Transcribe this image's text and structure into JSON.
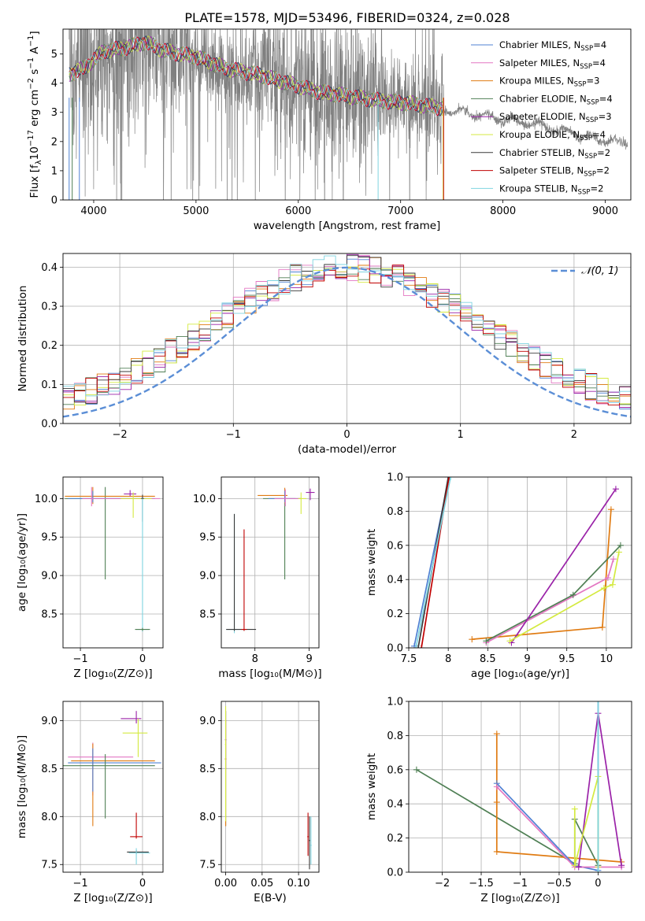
{
  "figure": {
    "title": "PLATE=1578, MJD=53496, FIBERID=0324, z=0.028"
  },
  "models": [
    {
      "name": "Chabrier MILES",
      "nssp": "4",
      "color": "#4f81d3"
    },
    {
      "name": "Salpeter MILES",
      "nssp": "4",
      "color": "#e377c2"
    },
    {
      "name": "Kroupa MILES",
      "nssp": "3",
      "color": "#e07b12"
    },
    {
      "name": "Chabrier ELODIE",
      "nssp": "4",
      "color": "#4f7f54"
    },
    {
      "name": "Salpeter ELODIE",
      "nssp": "3",
      "color": "#9a22a8"
    },
    {
      "name": "Kroupa ELODIE",
      "nssp": "4",
      "color": "#d4ea40"
    },
    {
      "name": "Chabrier STELIB",
      "nssp": "2",
      "color": "#3a3a3a"
    },
    {
      "name": "Salpeter STELIB",
      "nssp": "2",
      "color": "#c00000"
    },
    {
      "name": "Kroupa STELIB",
      "nssp": "2",
      "color": "#7fd4e0"
    }
  ],
  "chart_data": [
    {
      "id": "spectrum",
      "type": "line",
      "xlabel": "wavelength [Angstrom, rest frame]",
      "ylabel_parts": [
        "Flux [f",
        "λ",
        "10",
        "−17",
        " erg cm",
        "−2",
        " s",
        "−1",
        " A",
        "−1",
        "]"
      ],
      "xlim": [
        3700,
        9250
      ],
      "ylim": [
        0,
        5.85
      ],
      "xticks": [
        4000,
        5000,
        6000,
        7000,
        8000,
        9000
      ],
      "yticks": [
        0,
        1,
        2,
        3,
        4,
        5
      ],
      "data_color": "#808080",
      "spectrum_continuum": [
        [
          3750,
          4.3
        ],
        [
          3900,
          4.5
        ],
        [
          4100,
          5.1
        ],
        [
          4300,
          5.2
        ],
        [
          4500,
          5.4
        ],
        [
          4700,
          5.1
        ],
        [
          5000,
          4.9
        ],
        [
          5300,
          4.5
        ],
        [
          5600,
          4.3
        ],
        [
          5900,
          4.0
        ],
        [
          6200,
          3.7
        ],
        [
          6500,
          3.55
        ],
        [
          6800,
          3.4
        ],
        [
          7100,
          3.3
        ],
        [
          7400,
          3.15
        ],
        [
          7700,
          2.95
        ],
        [
          8000,
          2.75
        ],
        [
          8300,
          2.6
        ],
        [
          8600,
          2.35
        ],
        [
          8900,
          2.1
        ],
        [
          9150,
          1.95
        ]
      ],
      "model_fit_range": [
        3760,
        7420
      ]
    },
    {
      "id": "residuals",
      "type": "histogram",
      "xlabel": "(data-model)/error",
      "ylabel": "Normed distribution",
      "xlim": [
        -2.5,
        2.5
      ],
      "ylim": [
        0,
        0.435
      ],
      "xticks": [
        -2,
        -1,
        0,
        1,
        2
      ],
      "yticks": [
        0.0,
        0.1,
        0.2,
        0.3,
        0.4
      ],
      "bin_width": 0.1,
      "reference_curve": {
        "name": "𝒩(0, 1)",
        "mean": 0,
        "sigma": 1,
        "color": "#5b8ed6"
      }
    },
    {
      "id": "age-vs-Z",
      "type": "scatter",
      "xlabel": "Z [log₁₀(Z/Z⊙)]",
      "ylabel": "age  [log₁₀(age/yr)]",
      "xlim": [
        -1.28,
        0.33
      ],
      "ylim": [
        8.06,
        10.28
      ],
      "xticks": [
        -1,
        0
      ],
      "yticks": [
        8.5,
        9.0,
        9.5,
        10.0
      ]
    },
    {
      "id": "age-vs-mass",
      "type": "scatter",
      "xlabel": "mass [log₁₀(M/M⊙)]",
      "ylabel": "",
      "xlim": [
        7.38,
        9.18
      ],
      "ylim": [
        8.06,
        10.28
      ],
      "xticks": [
        8,
        9
      ],
      "yticks": [
        8.5,
        9.0,
        9.5,
        10.0
      ]
    },
    {
      "id": "massweight-vs-age",
      "type": "line",
      "xlabel": "age  [log₁₀(age/yr)]",
      "ylabel": "mass weight",
      "xlim": [
        7.5,
        10.32
      ],
      "ylim": [
        0,
        1
      ],
      "xticks": [
        7.5,
        8.0,
        8.5,
        9.0,
        9.5,
        10.0
      ],
      "yticks": [
        0.0,
        0.2,
        0.4,
        0.6,
        0.8,
        1.0
      ],
      "series": [
        {
          "model": 0,
          "points": [
            [
              7.57,
              0.01
            ],
            [
              8.01,
              1.0
            ]
          ]
        },
        {
          "model": 2,
          "points": [
            [
              8.3,
              0.05
            ],
            [
              9.95,
              0.12
            ],
            [
              10.06,
              0.81
            ]
          ]
        },
        {
          "model": 1,
          "points": [
            [
              8.48,
              0.03
            ],
            [
              10.02,
              0.41
            ],
            [
              10.09,
              0.52
            ]
          ]
        },
        {
          "model": 3,
          "points": [
            [
              8.48,
              0.04
            ],
            [
              9.58,
              0.31
            ],
            [
              10.18,
              0.6
            ]
          ]
        },
        {
          "model": 4,
          "points": [
            [
              8.8,
              0.03
            ],
            [
              10.12,
              0.93
            ]
          ]
        },
        {
          "model": 5,
          "points": [
            [
              8.78,
              0.04
            ],
            [
              9.97,
              0.35
            ],
            [
              10.08,
              0.37
            ],
            [
              10.16,
              0.56
            ]
          ]
        },
        {
          "model": 6,
          "points": [
            [
              7.62,
              0.0
            ],
            [
              8.0,
              1.0
            ]
          ]
        },
        {
          "model": 7,
          "points": [
            [
              7.66,
              0.0
            ],
            [
              8.01,
              1.0
            ]
          ]
        },
        {
          "model": 8,
          "points": [
            [
              7.59,
              0.0
            ],
            [
              8.03,
              1.0
            ]
          ]
        }
      ]
    },
    {
      "id": "mass-vs-Z",
      "type": "scatter",
      "xlabel": "Z [log₁₀(Z/Z⊙)]",
      "ylabel": "mass [log₁₀(M/M⊙)]",
      "xlim": [
        -1.28,
        0.33
      ],
      "ylim": [
        7.42,
        9.2
      ],
      "xticks": [
        -1,
        0
      ],
      "yticks": [
        7.5,
        8.0,
        8.5,
        9.0
      ]
    },
    {
      "id": "mass-vs-EBV",
      "type": "scatter",
      "xlabel": "E(B-V)",
      "ylabel": "",
      "xlim": [
        -0.006,
        0.128
      ],
      "ylim": [
        7.42,
        9.2
      ],
      "xticks": [
        0.0,
        0.05,
        0.1
      ],
      "xticklabels": [
        "0.00",
        "0.05",
        "0.10"
      ],
      "yticks": [
        7.5,
        8.0,
        8.5,
        9.0
      ]
    },
    {
      "id": "massweight-vs-Z",
      "type": "line",
      "xlabel": "Z [log₁₀(Z/Z⊙)]",
      "ylabel": "mass weight",
      "xlim": [
        -2.43,
        0.43
      ],
      "ylim": [
        0,
        1
      ],
      "xticks": [
        -2.0,
        -1.5,
        -1.0,
        -0.5,
        0.0
      ],
      "yticks": [
        0.0,
        0.2,
        0.4,
        0.6,
        0.8,
        1.0
      ],
      "series": [
        {
          "model": 3,
          "points": [
            [
              -2.33,
              0.6
            ],
            [
              -0.3,
              0.05
            ],
            [
              -0.3,
              0.31
            ],
            [
              0.0,
              0.04
            ]
          ]
        },
        {
          "model": 2,
          "points": [
            [
              -1.3,
              0.81
            ],
            [
              -1.3,
              0.41
            ],
            [
              -1.3,
              0.12
            ],
            [
              0.3,
              0.06
            ]
          ]
        },
        {
          "model": 0,
          "points": [
            [
              -1.3,
              0.52
            ],
            [
              -0.3,
              0.04
            ],
            [
              0.0,
              0.01
            ],
            [
              0.0,
              1.0
            ]
          ]
        },
        {
          "model": 1,
          "points": [
            [
              -1.3,
              0.5
            ],
            [
              -0.3,
              0.03
            ],
            [
              0.3,
              0.03
            ]
          ]
        },
        {
          "model": 4,
          "points": [
            [
              -0.25,
              0.03
            ],
            [
              0.0,
              0.93
            ],
            [
              0.3,
              0.04
            ]
          ]
        },
        {
          "model": 5,
          "points": [
            [
              -0.3,
              0.37
            ],
            [
              -0.3,
              0.04
            ],
            [
              0.0,
              0.56
            ],
            [
              0.0,
              0.03
            ]
          ]
        },
        {
          "model": 8,
          "points": [
            [
              0.0,
              0.0
            ],
            [
              0.0,
              1.0
            ]
          ]
        }
      ]
    }
  ]
}
